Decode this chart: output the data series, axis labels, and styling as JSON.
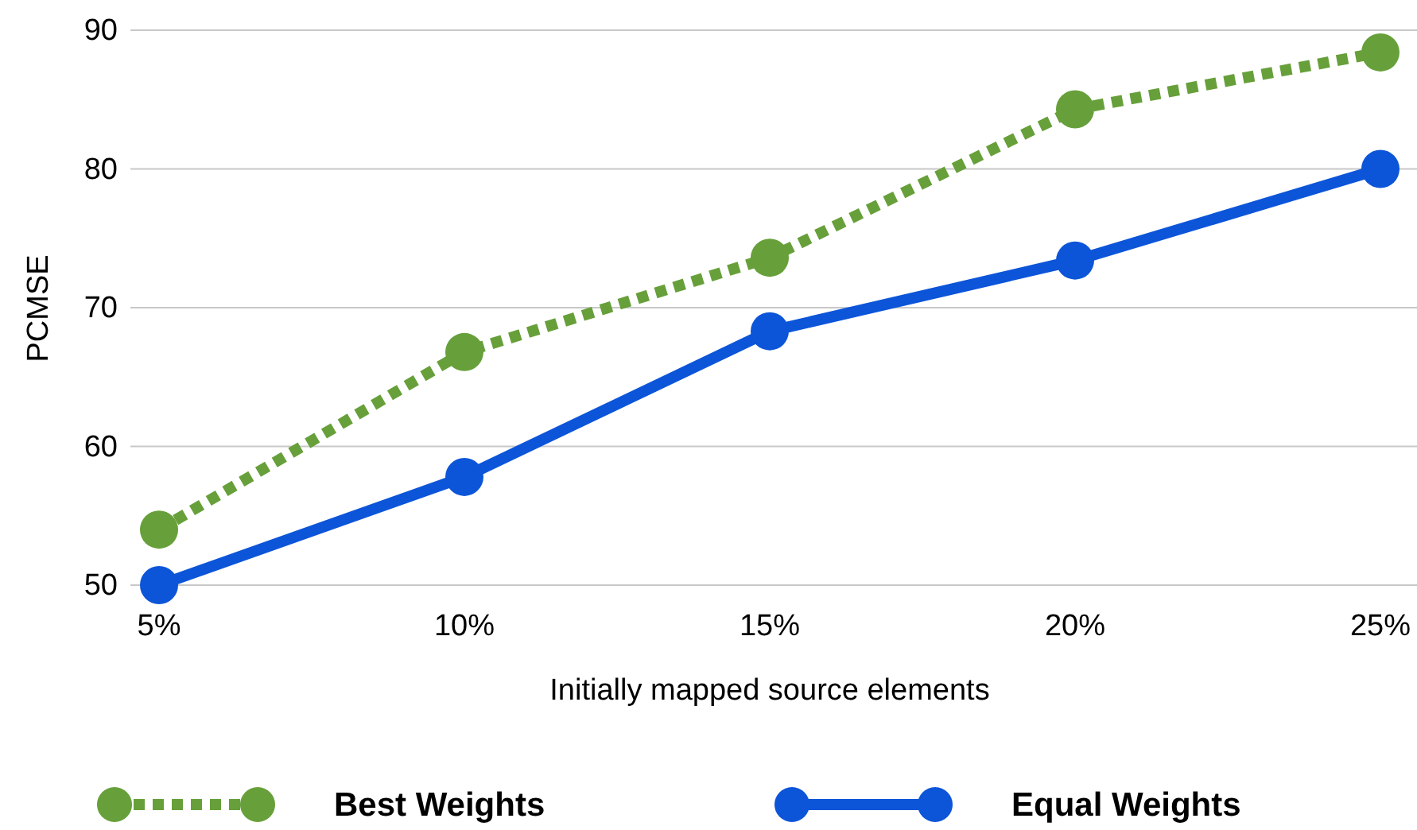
{
  "chart_data": {
    "type": "line",
    "xlabel": "Initially mapped source elements",
    "ylabel": "PCMSE",
    "categories": [
      "5%",
      "10%",
      "15%",
      "20%",
      "25%"
    ],
    "series": [
      {
        "name": "Best Weights",
        "color": "#67a03a",
        "values": [
          54,
          66.8,
          73.6,
          84.3,
          88.4
        ],
        "line_style": "dotted"
      },
      {
        "name": "Equal Weights",
        "color": "#0c55d8",
        "values": [
          50,
          57.8,
          68.3,
          73.4,
          80
        ],
        "line_style": "solid"
      }
    ],
    "ylim": [
      50,
      90
    ],
    "yticks": [
      50,
      60,
      70,
      80,
      90
    ],
    "grid": "y",
    "legend": "bottom",
    "marker": "circle"
  }
}
